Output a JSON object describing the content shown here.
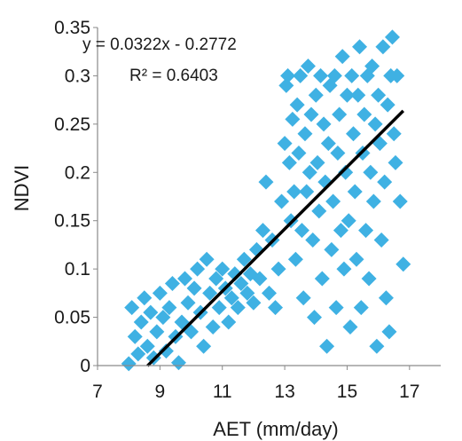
{
  "chart_data": {
    "type": "scatter",
    "title": "",
    "xlabel": "AET (mm/day)",
    "ylabel": "NDVI",
    "xlim": [
      7,
      18
    ],
    "ylim": [
      0,
      0.35
    ],
    "xticks": [
      "7",
      "9",
      "11",
      "13",
      "15",
      "17"
    ],
    "yticks": [
      "0",
      "0.05",
      "0.1",
      "0.15",
      "0.2",
      "0.25",
      "0.3",
      "0.35"
    ],
    "grid": false,
    "legend": "none",
    "marker": "diamond",
    "point_color": "#3fb1e3",
    "trendline": {
      "slope": 0.0322,
      "intercept": -0.2772,
      "x_range": [
        8.6,
        16.8
      ],
      "color": "#000000",
      "equation_label": "y = 0.0322x - 0.2772",
      "r2_label": "R² = 0.6403"
    },
    "series": [
      {
        "points": [
          [
            8.0,
            0.002
          ],
          [
            8.1,
            0.06
          ],
          [
            8.2,
            0.03
          ],
          [
            8.3,
            0.012
          ],
          [
            8.4,
            0.045
          ],
          [
            8.5,
            0.07
          ],
          [
            8.6,
            0.02
          ],
          [
            8.7,
            0.055
          ],
          [
            8.8,
            0.008
          ],
          [
            8.9,
            0.035
          ],
          [
            9.0,
            0.075
          ],
          [
            9.1,
            0.05
          ],
          [
            9.2,
            0.015
          ],
          [
            9.3,
            0.06
          ],
          [
            9.4,
            0.085
          ],
          [
            9.5,
            0.03
          ],
          [
            9.6,
            0.003
          ],
          [
            9.7,
            0.045
          ],
          [
            9.8,
            0.09
          ],
          [
            9.9,
            0.065
          ],
          [
            10.0,
            0.035
          ],
          [
            10.1,
            0.08
          ],
          [
            10.2,
            0.1
          ],
          [
            10.3,
            0.055
          ],
          [
            10.4,
            0.02
          ],
          [
            10.5,
            0.11
          ],
          [
            10.6,
            0.075
          ],
          [
            10.7,
            0.04
          ],
          [
            10.8,
            0.09
          ],
          [
            10.9,
            0.06
          ],
          [
            11.0,
            0.1
          ],
          [
            11.1,
            0.08
          ],
          [
            11.2,
            0.045
          ],
          [
            11.3,
            0.07
          ],
          [
            11.4,
            0.095
          ],
          [
            11.5,
            0.06
          ],
          [
            11.6,
            0.085
          ],
          [
            11.7,
            0.11
          ],
          [
            11.8,
            0.075
          ],
          [
            11.9,
            0.095
          ],
          [
            12.0,
            0.065
          ],
          [
            12.1,
            0.12
          ],
          [
            12.2,
            0.09
          ],
          [
            12.3,
            0.14
          ],
          [
            12.4,
            0.19
          ],
          [
            12.5,
            0.075
          ],
          [
            12.6,
            0.13
          ],
          [
            12.7,
            0.06
          ],
          [
            12.8,
            0.1
          ],
          [
            12.9,
            0.17
          ],
          [
            13.0,
            0.23
          ],
          [
            13.05,
            0.29
          ],
          [
            13.1,
            0.3
          ],
          [
            13.15,
            0.21
          ],
          [
            13.2,
            0.15
          ],
          [
            13.25,
            0.255
          ],
          [
            13.3,
            0.18
          ],
          [
            13.35,
            0.11
          ],
          [
            13.4,
            0.27
          ],
          [
            13.45,
            0.22
          ],
          [
            13.5,
            0.3
          ],
          [
            13.55,
            0.14
          ],
          [
            13.6,
            0.07
          ],
          [
            13.65,
            0.24
          ],
          [
            13.7,
            0.18
          ],
          [
            13.75,
            0.31
          ],
          [
            13.8,
            0.2
          ],
          [
            13.85,
            0.26
          ],
          [
            13.9,
            0.13
          ],
          [
            13.95,
            0.05
          ],
          [
            14.0,
            0.28
          ],
          [
            14.05,
            0.21
          ],
          [
            14.1,
            0.16
          ],
          [
            14.15,
            0.3
          ],
          [
            14.2,
            0.09
          ],
          [
            14.25,
            0.25
          ],
          [
            14.3,
            0.19
          ],
          [
            14.35,
            0.02
          ],
          [
            14.4,
            0.23
          ],
          [
            14.45,
            0.29
          ],
          [
            14.5,
            0.12
          ],
          [
            14.55,
            0.17
          ],
          [
            14.6,
            0.3
          ],
          [
            14.65,
            0.06
          ],
          [
            14.7,
            0.22
          ],
          [
            14.75,
            0.26
          ],
          [
            14.8,
            0.14
          ],
          [
            14.85,
            0.32
          ],
          [
            14.9,
            0.1
          ],
          [
            14.95,
            0.2
          ],
          [
            15.0,
            0.28
          ],
          [
            15.05,
            0.15
          ],
          [
            15.1,
            0.04
          ],
          [
            15.15,
            0.3
          ],
          [
            15.2,
            0.24
          ],
          [
            15.25,
            0.18
          ],
          [
            15.3,
            0.11
          ],
          [
            15.35,
            0.28
          ],
          [
            15.4,
            0.33
          ],
          [
            15.45,
            0.06
          ],
          [
            15.5,
            0.22
          ],
          [
            15.55,
            0.26
          ],
          [
            15.6,
            0.14
          ],
          [
            15.65,
            0.3
          ],
          [
            15.7,
            0.09
          ],
          [
            15.75,
            0.2
          ],
          [
            15.8,
            0.31
          ],
          [
            15.85,
            0.17
          ],
          [
            15.9,
            0.25
          ],
          [
            15.95,
            0.02
          ],
          [
            16.0,
            0.28
          ],
          [
            16.05,
            0.23
          ],
          [
            16.1,
            0.13
          ],
          [
            16.15,
            0.33
          ],
          [
            16.2,
            0.19
          ],
          [
            16.25,
            0.07
          ],
          [
            16.3,
            0.27
          ],
          [
            16.35,
            0.035
          ],
          [
            16.4,
            0.3
          ],
          [
            16.45,
            0.34
          ],
          [
            16.5,
            0.24
          ],
          [
            16.55,
            0.21
          ],
          [
            16.6,
            0.3
          ],
          [
            16.7,
            0.17
          ],
          [
            16.8,
            0.105
          ]
        ]
      }
    ]
  }
}
